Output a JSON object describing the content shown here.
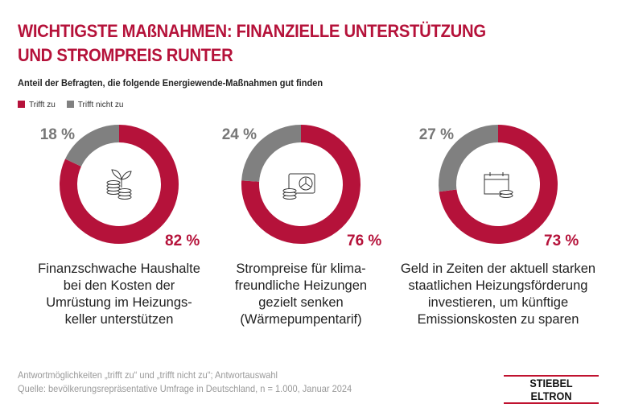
{
  "title_line1": "WICHTIGSTE MAßNAHMEN: FINANZIELLE UNTERSTÜTZUNG",
  "title_line2": "UND STROMPREIS RUNTER",
  "subtitle": "Anteil der Befragten, die folgende Energiewende-Maßnahmen gut finden",
  "colors": {
    "yes": "#b5123a",
    "no": "#808080",
    "title": "#b5123a"
  },
  "chart_data": {
    "type": "pie",
    "legend": [
      "Trifft zu",
      "Trifft nicht zu"
    ],
    "legend_placement": "top-left",
    "charts": [
      {
        "yes": 82,
        "no": 18,
        "yes_label": "82 %",
        "no_label": "18 %",
        "icon": "plant-coins-icon",
        "description": [
          "Finanzschwache Haushalte",
          "bei den Kosten der",
          "Umrüstung im Heizungs-",
          "keller unterstützen"
        ]
      },
      {
        "yes": 76,
        "no": 24,
        "yes_label": "76 %",
        "no_label": "24 %",
        "icon": "heatpump-coins-icon",
        "description": [
          "Strompreise für klima-",
          "freundliche Heizungen",
          "gezielt senken",
          "(Wärmepumpentarif)"
        ]
      },
      {
        "yes": 73,
        "no": 27,
        "yes_label": "73 %",
        "no_label": "27 %",
        "icon": "calendar-coins-icon",
        "description": [
          "Geld in Zeiten der aktuell starken",
          "staatlichen Heizungsförderung",
          "investieren, um künftige",
          "Emissionskosten zu sparen"
        ]
      }
    ]
  },
  "footer": [
    "Antwortmöglichkeiten „trifft zu“ und „trifft nicht zu“; Antwortauswahl",
    "Quelle: bevölkerungsrepräsentative Umfrage in Deutschland, n = 1.000, Januar 2024"
  ],
  "logo": "STIEBEL ELTRON"
}
